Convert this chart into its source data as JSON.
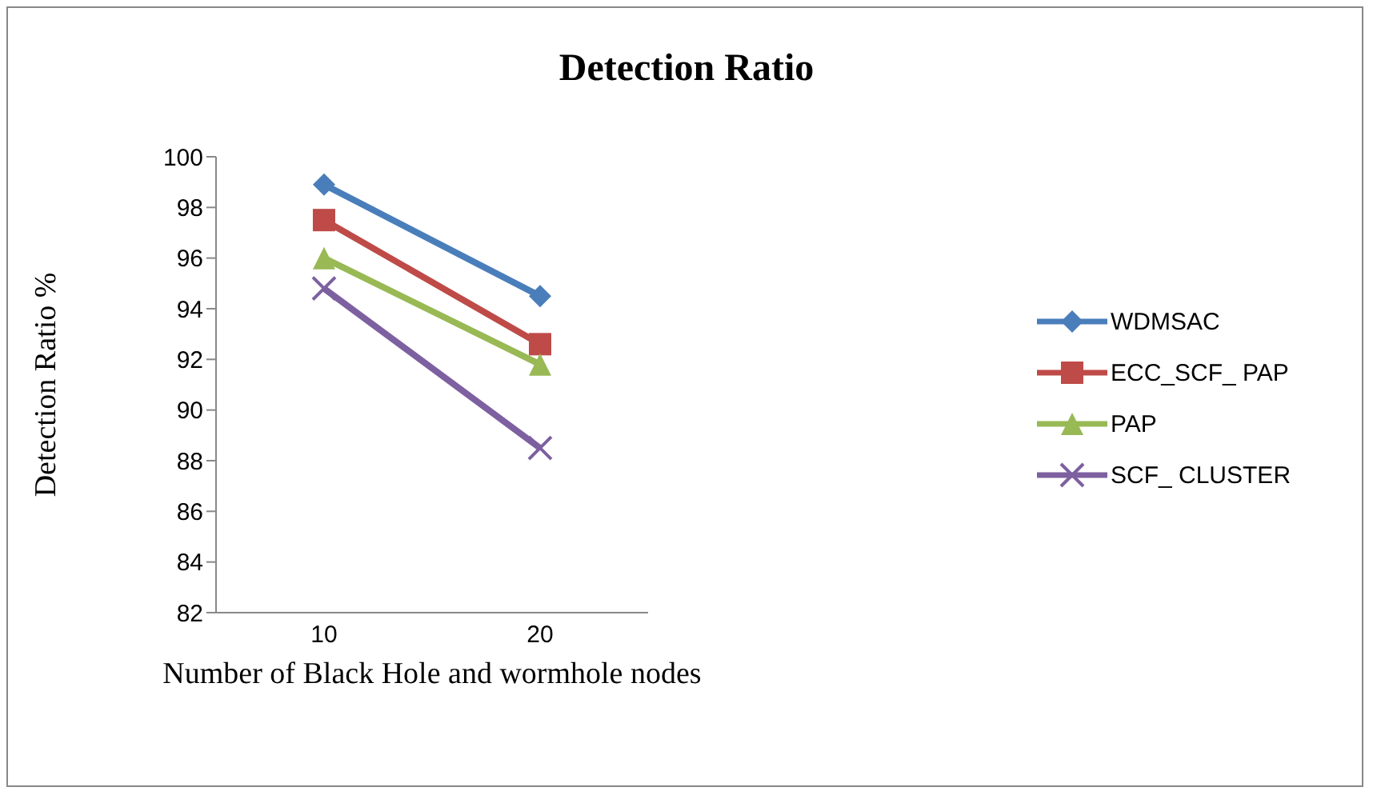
{
  "chart_data": {
    "type": "line",
    "title": "Detection Ratio",
    "xlabel": "Number of Black Hole and wormhole nodes",
    "ylabel": "Detection Ratio %",
    "categories": [
      "10",
      "20"
    ],
    "ylim": [
      82,
      100
    ],
    "yticks": [
      82,
      84,
      86,
      88,
      90,
      92,
      94,
      96,
      98,
      100
    ],
    "grid": false,
    "legend": "right",
    "line_style": "solid",
    "series": [
      {
        "name": "WDMSAC",
        "color": "#4a7ebb",
        "marker": "diamond",
        "values": [
          98.9,
          94.5
        ]
      },
      {
        "name": "ECC_SCF_ PAP",
        "color": "#be4b48",
        "marker": "square",
        "values": [
          97.5,
          92.6
        ]
      },
      {
        "name": "PAP",
        "color": "#98b954",
        "marker": "triangle",
        "values": [
          96.0,
          91.8
        ]
      },
      {
        "name": "SCF_ CLUSTER",
        "color": "#7d60a0",
        "marker": "cross",
        "values": [
          94.8,
          88.5
        ]
      }
    ]
  }
}
